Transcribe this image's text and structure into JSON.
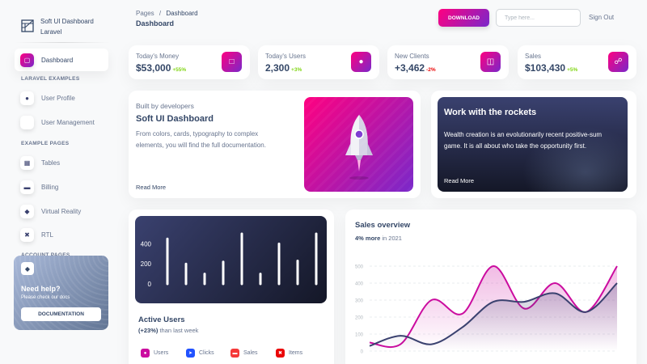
{
  "sidebar": {
    "brand": "Soft UI Dashboard Laravel",
    "items": [
      {
        "label": "Dashboard",
        "icon": "shop-icon"
      },
      {
        "label": "User Profile",
        "icon": "user-icon"
      },
      {
        "label": "User Management",
        "icon": "users-icon"
      },
      {
        "label": "Tables",
        "icon": "table-icon"
      },
      {
        "label": "Billing",
        "icon": "credit-card-icon"
      },
      {
        "label": "Virtual Reality",
        "icon": "cube-icon"
      },
      {
        "label": "RTL",
        "icon": "wrench-icon"
      }
    ],
    "sections": [
      "LARAVEL EXAMPLES",
      "EXAMPLE PAGES",
      "ACCOUNT PAGES"
    ],
    "help": {
      "title": "Need help?",
      "subtitle": "Please check our docs",
      "button": "DOCUMENTATION"
    }
  },
  "header": {
    "breadcrumb_parent": "Pages",
    "breadcrumb_sep": "/",
    "breadcrumb_current": "Dashboard",
    "title": "Dashboard",
    "download": "DOWNLOAD",
    "search_placeholder": "Type here...",
    "signout": "Sign Out"
  },
  "stats": [
    {
      "label": "Today's Money",
      "value": "$53,000",
      "change": "+55%",
      "icon": "money-icon"
    },
    {
      "label": "Today's Users",
      "value": "2,300",
      "change": "+3%",
      "icon": "globe-icon"
    },
    {
      "label": "New Clients",
      "value": "+3,462",
      "change": "-2%",
      "icon": "document-icon"
    },
    {
      "label": "Sales",
      "value": "$103,430",
      "change": "+5%",
      "icon": "cart-icon"
    }
  ],
  "built": {
    "subtitle": "Built by developers",
    "title": "Soft UI Dashboard",
    "desc": "From colors, cards, typography to complex elements, you will find the full documentation.",
    "read_more": "Read More"
  },
  "rockets": {
    "title": "Work with the rockets",
    "desc": "Wealth creation is an evolutionarily recent positive-sum game. It is all about who take the opportunity first.",
    "read_more": "Read More"
  },
  "active_users": {
    "title": "Active Users",
    "change": "(+23%)",
    "suffix": " than last week",
    "legend": [
      {
        "label": "Users",
        "color": "#cb0c9f"
      },
      {
        "label": "Clicks",
        "color": "#2152ff"
      },
      {
        "label": "Sales",
        "color": "#f53939"
      },
      {
        "label": "Items",
        "color": "#ea0606"
      }
    ]
  },
  "sales_overview": {
    "title": "Sales overview",
    "change": "4% more",
    "suffix": " in 2021"
  },
  "chart_data": [
    {
      "type": "bar",
      "values": [
        450,
        200,
        100,
        220,
        500,
        100,
        400,
        230,
        500
      ],
      "yticks": [
        0,
        200,
        400
      ],
      "ylim": [
        0,
        500
      ],
      "color": "#ffffff"
    },
    {
      "type": "area",
      "x": [
        0,
        1,
        2,
        3,
        4,
        5,
        6,
        7,
        8
      ],
      "series": [
        {
          "values": [
            50,
            40,
            300,
            220,
            500,
            250,
            400,
            230,
            500
          ],
          "color": "#cb0c9f"
        },
        {
          "values": [
            30,
            90,
            40,
            140,
            290,
            290,
            340,
            230,
            400
          ],
          "color": "#3a416f"
        }
      ],
      "yticks": [
        0,
        100,
        200,
        300,
        400,
        500
      ],
      "ylim": [
        0,
        500
      ],
      "grid": true
    }
  ]
}
